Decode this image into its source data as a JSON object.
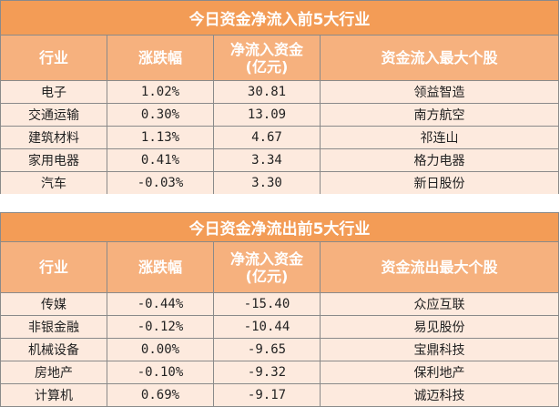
{
  "inflow": {
    "title": "今日资金净流入前5大行业",
    "headers": [
      "行业",
      "涨跌幅",
      "净流入资金\n(亿元)",
      "资金流入最大个股"
    ],
    "rows": [
      [
        "电子",
        "1.02%",
        "30.81",
        "领益智造"
      ],
      [
        "交通运输",
        "0.30%",
        "13.09",
        "南方航空"
      ],
      [
        "建筑材料",
        "1.13%",
        "4.67",
        "祁连山"
      ],
      [
        "家用电器",
        "0.41%",
        "3.34",
        "格力电器"
      ],
      [
        "汽车",
        "-0.03%",
        "3.30",
        "新日股份"
      ]
    ]
  },
  "outflow": {
    "title": "今日资金净流出前5大行业",
    "headers": [
      "行业",
      "涨跌幅",
      "净流入资金\n(亿元)",
      "资金流出最大个股"
    ],
    "rows": [
      [
        "传媒",
        "-0.44%",
        "-15.40",
        "众应互联"
      ],
      [
        "非银金融",
        "-0.12%",
        "-10.44",
        "易见股份"
      ],
      [
        "机械设备",
        "0.00%",
        "-9.65",
        "宝鼎科技"
      ],
      [
        "房地产",
        "-0.10%",
        "-9.32",
        "保利地产"
      ],
      [
        "计算机",
        "0.69%",
        "-9.17",
        "诚迈科技"
      ]
    ]
  },
  "colors": {
    "title_bg": "#f39c56",
    "header_bg": "#f6b17e",
    "row_bg": "#fdeade",
    "border": "#8a8a8a"
  }
}
